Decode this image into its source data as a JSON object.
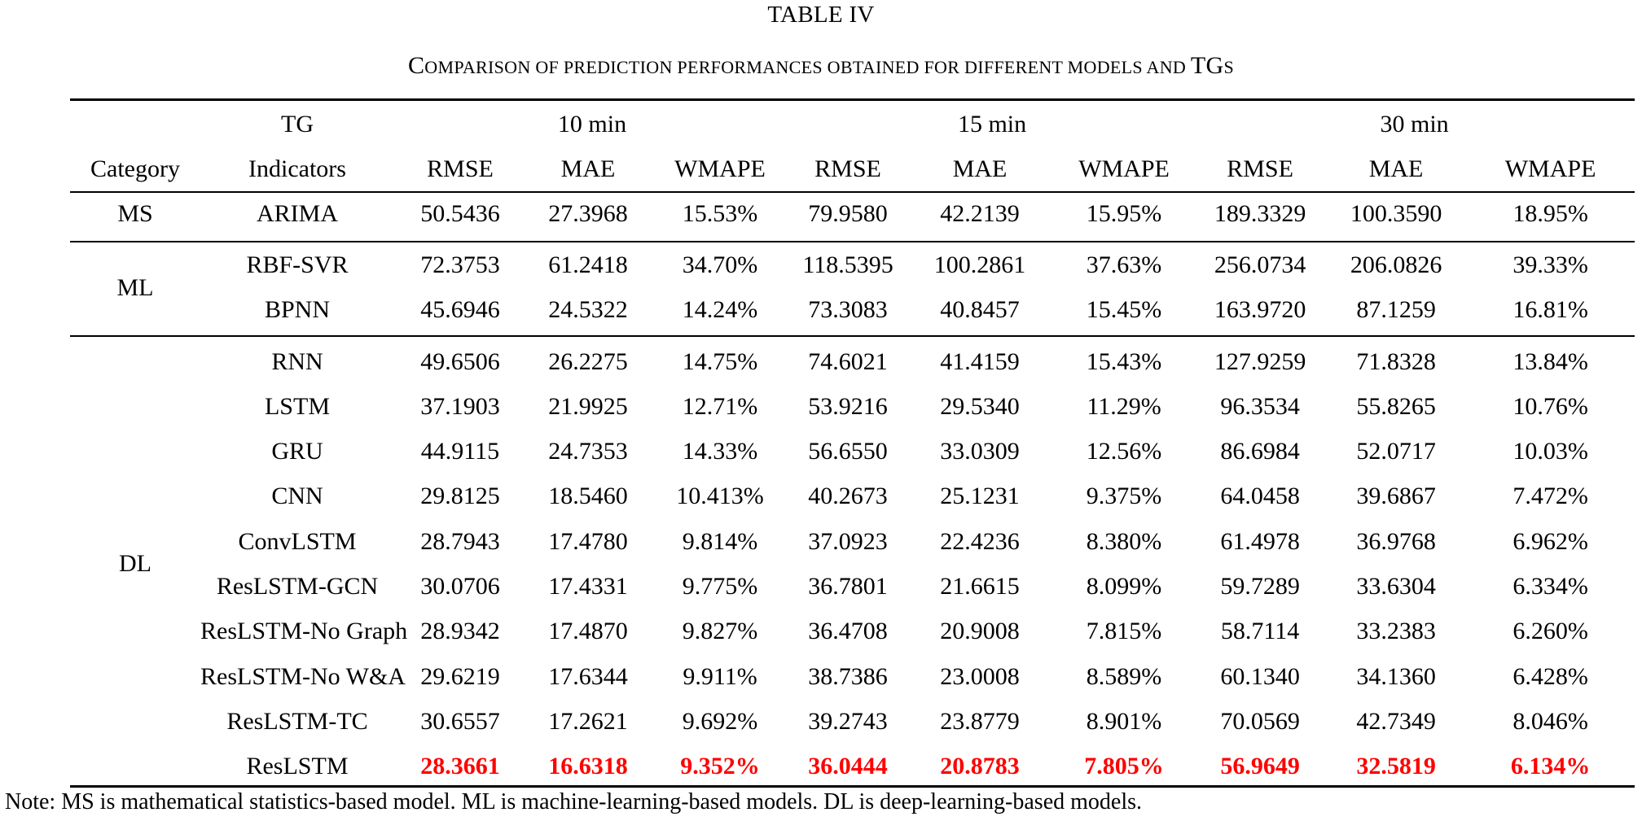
{
  "title": "TABLE IV",
  "subtitle": {
    "first_letter": "C",
    "rest": "OMPARISON OF PREDICTION PERFORMANCES OBTAINED FOR DIFFERENT MODELS AND ",
    "tg_caps": "TG",
    "tg_suffix": "S"
  },
  "header": {
    "tg_label": "TG",
    "category_label": "Category",
    "indicators_label": "Indicators",
    "groups": [
      "10 min",
      "15 min",
      "30 min"
    ],
    "metrics": [
      "RMSE",
      "MAE",
      "WMAPE"
    ]
  },
  "groups": [
    {
      "category": "MS",
      "rows": [
        {
          "model": "ARIMA",
          "values": [
            "50.5436",
            "27.3968",
            "15.53%",
            "79.9580",
            "42.2139",
            "15.95%",
            "189.3329",
            "100.3590",
            "18.95%"
          ]
        }
      ]
    },
    {
      "category": "ML",
      "rows": [
        {
          "model": "RBF-SVR",
          "values": [
            "72.3753",
            "61.2418",
            "34.70%",
            "118.5395",
            "100.2861",
            "37.63%",
            "256.0734",
            "206.0826",
            "39.33%"
          ]
        },
        {
          "model": "BPNN",
          "values": [
            "45.6946",
            "24.5322",
            "14.24%",
            "73.3083",
            "40.8457",
            "15.45%",
            "163.9720",
            "87.1259",
            "16.81%"
          ]
        }
      ]
    },
    {
      "category": "DL",
      "rows": [
        {
          "model": "RNN",
          "values": [
            "49.6506",
            "26.2275",
            "14.75%",
            "74.6021",
            "41.4159",
            "15.43%",
            "127.9259",
            "71.8328",
            "13.84%"
          ]
        },
        {
          "model": "LSTM",
          "values": [
            "37.1903",
            "21.9925",
            "12.71%",
            "53.9216",
            "29.5340",
            "11.29%",
            "96.3534",
            "55.8265",
            "10.76%"
          ]
        },
        {
          "model": "GRU",
          "values": [
            "44.9115",
            "24.7353",
            "14.33%",
            "56.6550",
            "33.0309",
            "12.56%",
            "86.6984",
            "52.0717",
            "10.03%"
          ]
        },
        {
          "model": "CNN",
          "values": [
            "29.8125",
            "18.5460",
            "10.413%",
            "40.2673",
            "25.1231",
            "9.375%",
            "64.0458",
            "39.6867",
            "7.472%"
          ]
        },
        {
          "model": "ConvLSTM",
          "values": [
            "28.7943",
            "17.4780",
            "9.814%",
            "37.0923",
            "22.4236",
            "8.380%",
            "61.4978",
            "36.9768",
            "6.962%"
          ]
        },
        {
          "model": "ResLSTM-GCN",
          "values": [
            "30.0706",
            "17.4331",
            "9.775%",
            "36.7801",
            "21.6615",
            "8.099%",
            "59.7289",
            "33.6304",
            "6.334%"
          ]
        },
        {
          "model": "ResLSTM-No Graph",
          "values": [
            "28.9342",
            "17.4870",
            "9.827%",
            "36.4708",
            "20.9008",
            "7.815%",
            "58.7114",
            "33.2383",
            "6.260%"
          ]
        },
        {
          "model": "ResLSTM-No W&A",
          "values": [
            "29.6219",
            "17.6344",
            "9.911%",
            "38.7386",
            "23.0008",
            "8.589%",
            "60.1340",
            "34.1360",
            "6.428%"
          ]
        },
        {
          "model": "ResLSTM-TC",
          "values": [
            "30.6557",
            "17.2621",
            "9.692%",
            "39.2743",
            "23.8779",
            "8.901%",
            "70.0569",
            "42.7349",
            "8.046%"
          ]
        },
        {
          "model": "ResLSTM",
          "values": [
            "28.3661",
            "16.6318",
            "9.352%",
            "36.0444",
            "20.8783",
            "7.805%",
            "56.9649",
            "32.5819",
            "6.134%"
          ],
          "highlight": true
        }
      ]
    }
  ],
  "highlight_color": "#ff0000",
  "note": "Note: MS is mathematical statistics-based model. ML is machine-learning-based models. DL is deep-learning-based models."
}
